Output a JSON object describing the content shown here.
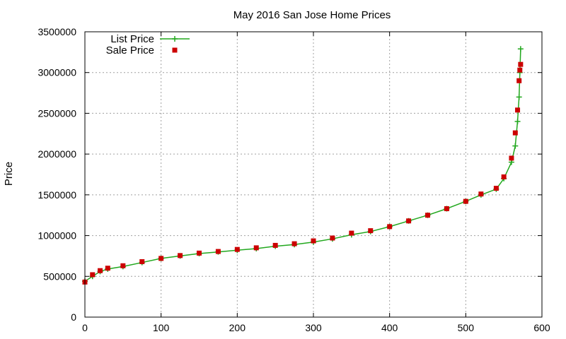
{
  "chart_data": {
    "type": "scatter",
    "title": "May 2016 San Jose Home Prices",
    "xlabel": "",
    "ylabel": "Price",
    "xlim": [
      0,
      600
    ],
    "ylim": [
      0,
      3500000
    ],
    "x_ticks": [
      0,
      100,
      200,
      300,
      400,
      500,
      600
    ],
    "y_ticks": [
      0,
      500000,
      1000000,
      1500000,
      2000000,
      2500000,
      3000000,
      3500000
    ],
    "x_tick_labels": [
      "0",
      "100",
      "200",
      "300",
      "400",
      "500",
      "600"
    ],
    "y_tick_labels": [
      "0",
      "500000",
      "1000000",
      "1500000",
      "2000000",
      "2500000",
      "3000000",
      "3500000"
    ],
    "grid": true,
    "legend_position": "top-left",
    "series": [
      {
        "name": "List Price",
        "marker": "plus",
        "connected": true,
        "color": "#22a81e",
        "x": [
          0,
          10,
          20,
          30,
          50,
          75,
          100,
          125,
          150,
          175,
          200,
          225,
          250,
          275,
          300,
          325,
          350,
          375,
          400,
          425,
          450,
          475,
          500,
          520,
          540,
          550,
          560,
          565,
          568,
          570,
          571,
          572
        ],
        "y": [
          440000,
          500000,
          560000,
          590000,
          620000,
          670000,
          720000,
          750000,
          780000,
          800000,
          820000,
          840000,
          870000,
          890000,
          920000,
          960000,
          1010000,
          1050000,
          1110000,
          1180000,
          1250000,
          1330000,
          1420000,
          1500000,
          1570000,
          1700000,
          1900000,
          2100000,
          2400000,
          2700000,
          3000000,
          3290000
        ]
      },
      {
        "name": "Sale Price",
        "marker": "square",
        "connected": false,
        "color": "#cc0000",
        "x": [
          0,
          10,
          20,
          30,
          50,
          75,
          100,
          125,
          150,
          175,
          200,
          225,
          250,
          275,
          300,
          325,
          350,
          375,
          400,
          425,
          450,
          475,
          500,
          520,
          540,
          550,
          560,
          565,
          568,
          570,
          571,
          572
        ],
        "y": [
          430000,
          520000,
          570000,
          600000,
          630000,
          680000,
          720000,
          755000,
          785000,
          805000,
          830000,
          850000,
          880000,
          900000,
          935000,
          970000,
          1030000,
          1060000,
          1110000,
          1180000,
          1250000,
          1330000,
          1420000,
          1510000,
          1580000,
          1720000,
          1950000,
          2260000,
          2540000,
          2900000,
          3030000,
          3100000
        ]
      }
    ]
  }
}
